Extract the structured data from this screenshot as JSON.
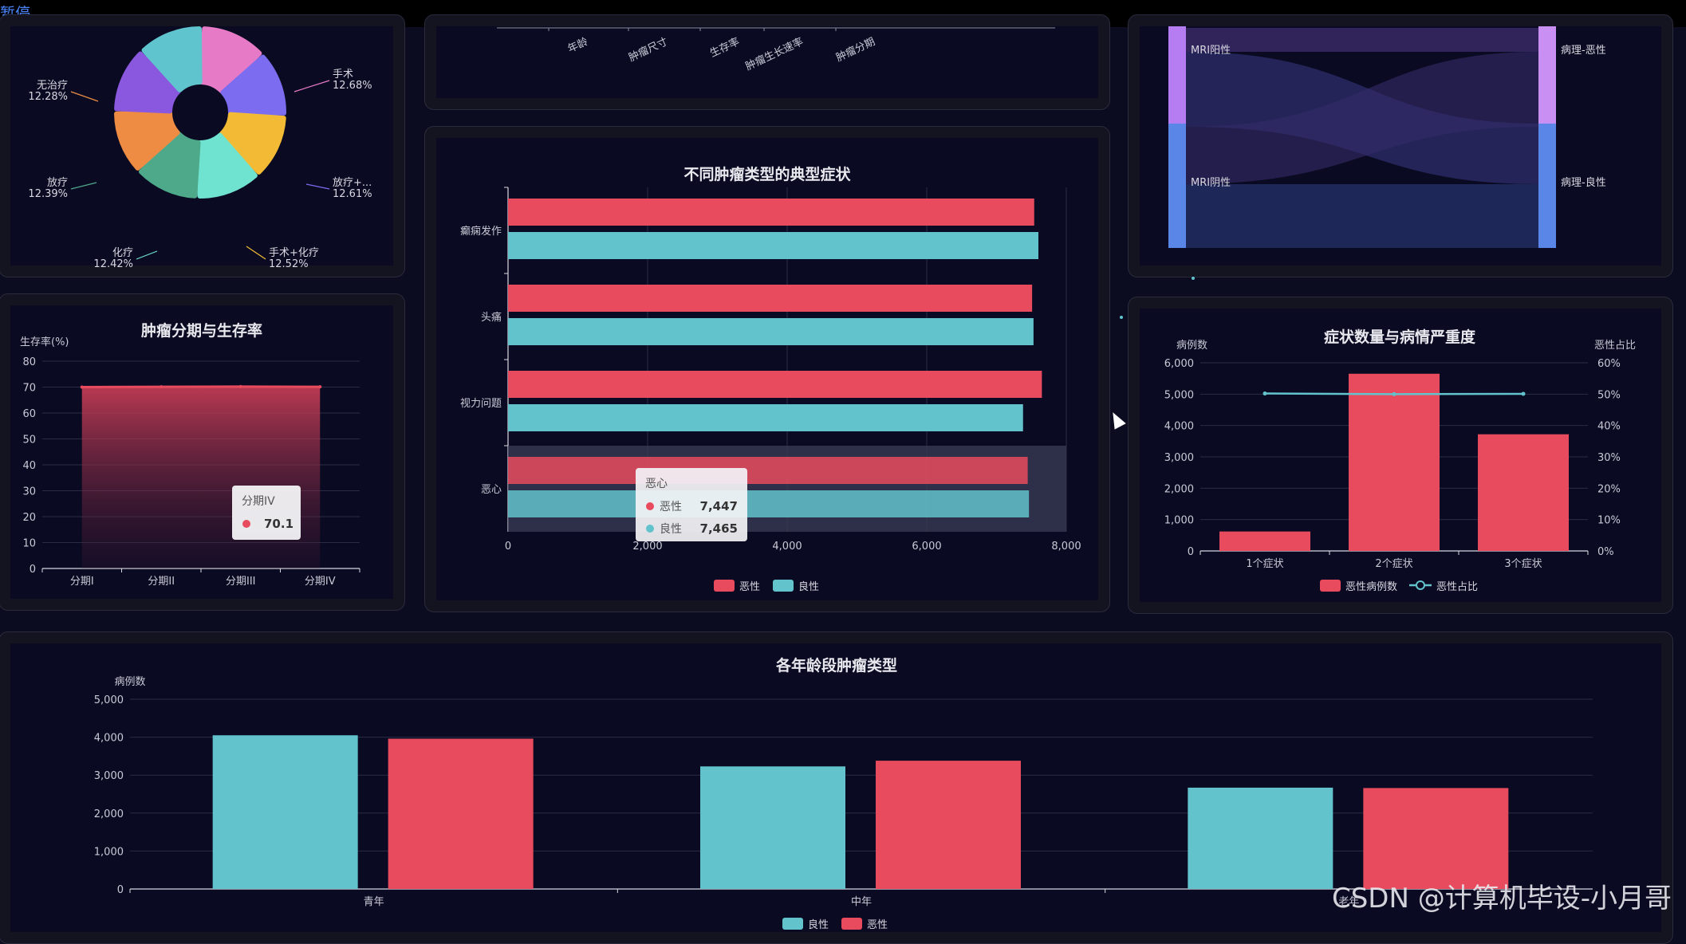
{
  "app": {
    "pause_label": "暂停",
    "watermark": "CSDN @计算机毕设-小月哥"
  },
  "colors": {
    "malignant": "#e84b5d",
    "benign": "#62c3cd",
    "grid": "#2a2c45",
    "axis": "#8a8c9f"
  },
  "chart_data": [
    {
      "id": "treatment_pie",
      "type": "pie",
      "title": "",
      "slices": [
        {
          "label": "手术",
          "value": 12.68,
          "pct": "12.68%",
          "color": "#e77ac6"
        },
        {
          "label": "放疗+...",
          "value": 12.61,
          "pct": "12.61%",
          "color": "#7b6cf0"
        },
        {
          "label": "手术+化疗",
          "value": 12.52,
          "pct": "12.52%",
          "color": "#f3bb35"
        },
        {
          "label": "化疗",
          "value": 12.42,
          "pct": "12.42%",
          "color": "#6fe3d0"
        },
        {
          "label": "放疗",
          "value": 12.39,
          "pct": "12.39%",
          "color": "#4ea88a"
        },
        {
          "label": "无治疗",
          "value": 12.28,
          "pct": "12.28%",
          "color": "#ee8c44"
        },
        {
          "label": "",
          "value": 12.6,
          "pct": "",
          "color": "#8a58de"
        },
        {
          "label": "",
          "value": 12.5,
          "pct": "",
          "color": "#5fc4cd"
        }
      ]
    },
    {
      "id": "top_axis_labels",
      "type": "bar",
      "categories": [
        "年龄",
        "肿瘤尺寸",
        "生存率",
        "肿瘤生长速率",
        "肿瘤分期"
      ]
    },
    {
      "id": "sankey",
      "type": "sankey",
      "title": "",
      "left": [
        "MRI阳性",
        "MRI阴性"
      ],
      "right": [
        "病理-恶性",
        "病理-良性"
      ]
    },
    {
      "id": "stage_survival",
      "type": "area",
      "title": "肿瘤分期与生存率",
      "ylabel": "生存率(%)",
      "ylim": [
        0,
        80
      ],
      "yticks": [
        0,
        10,
        20,
        30,
        40,
        50,
        60,
        70,
        80
      ],
      "categories": [
        "分期I",
        "分期II",
        "分期III",
        "分期IV"
      ],
      "values": [
        70.0,
        70.1,
        70.2,
        70.1
      ],
      "tooltip": {
        "title": "分期IV",
        "value": "70.1"
      }
    },
    {
      "id": "symptoms_by_type",
      "type": "bar",
      "title": "不同肿瘤类型的典型症状",
      "orientation": "horizontal",
      "categories": [
        "癫痫发作",
        "头痛",
        "视力问题",
        "恶心"
      ],
      "xlim": [
        0,
        8000
      ],
      "xticks": [
        "0",
        "2,000",
        "4,000",
        "6,000",
        "8,000"
      ],
      "series": [
        {
          "name": "恶性",
          "values": [
            7540,
            7510,
            7650,
            7447
          ]
        },
        {
          "name": "良性",
          "values": [
            7600,
            7530,
            7380,
            7465
          ]
        }
      ],
      "legend": [
        "恶性",
        "良性"
      ],
      "tooltip": {
        "title": "恶心",
        "rows": [
          {
            "name": "恶性",
            "value": "7,447"
          },
          {
            "name": "良性",
            "value": "7,465"
          }
        ]
      }
    },
    {
      "id": "symptom_count_severity",
      "type": "bar",
      "title": "症状数量与病情严重度",
      "ylabel": "病例数",
      "y2label": "恶性占比",
      "categories": [
        "1个症状",
        "2个症状",
        "3个症状"
      ],
      "ylim": [
        0,
        6000
      ],
      "yticks": [
        "0",
        "1,000",
        "2,000",
        "3,000",
        "4,000",
        "5,000",
        "6,000"
      ],
      "y2lim": [
        0,
        60
      ],
      "y2ticks": [
        "0%",
        "10%",
        "20%",
        "30%",
        "40%",
        "50%",
        "60%"
      ],
      "series": [
        {
          "name": "恶性病例数",
          "type": "bar",
          "values": [
            620,
            5650,
            3720
          ]
        },
        {
          "name": "恶性占比",
          "type": "line",
          "values": [
            50.2,
            50.0,
            50.1
          ]
        }
      ],
      "legend": [
        "恶性病例数",
        "恶性占比"
      ]
    },
    {
      "id": "age_tumor_type",
      "type": "bar",
      "title": "各年龄段肿瘤类型",
      "ylabel": "病例数",
      "ylim": [
        0,
        5000
      ],
      "yticks": [
        "0",
        "1,000",
        "2,000",
        "3,000",
        "4,000",
        "5,000"
      ],
      "categories": [
        "青年",
        "中年",
        "老年"
      ],
      "series": [
        {
          "name": "良性",
          "values": [
            4050,
            3230,
            2670
          ]
        },
        {
          "name": "恶性",
          "values": [
            3960,
            3380,
            2660
          ]
        }
      ],
      "legend": [
        "良性",
        "恶性"
      ]
    }
  ]
}
